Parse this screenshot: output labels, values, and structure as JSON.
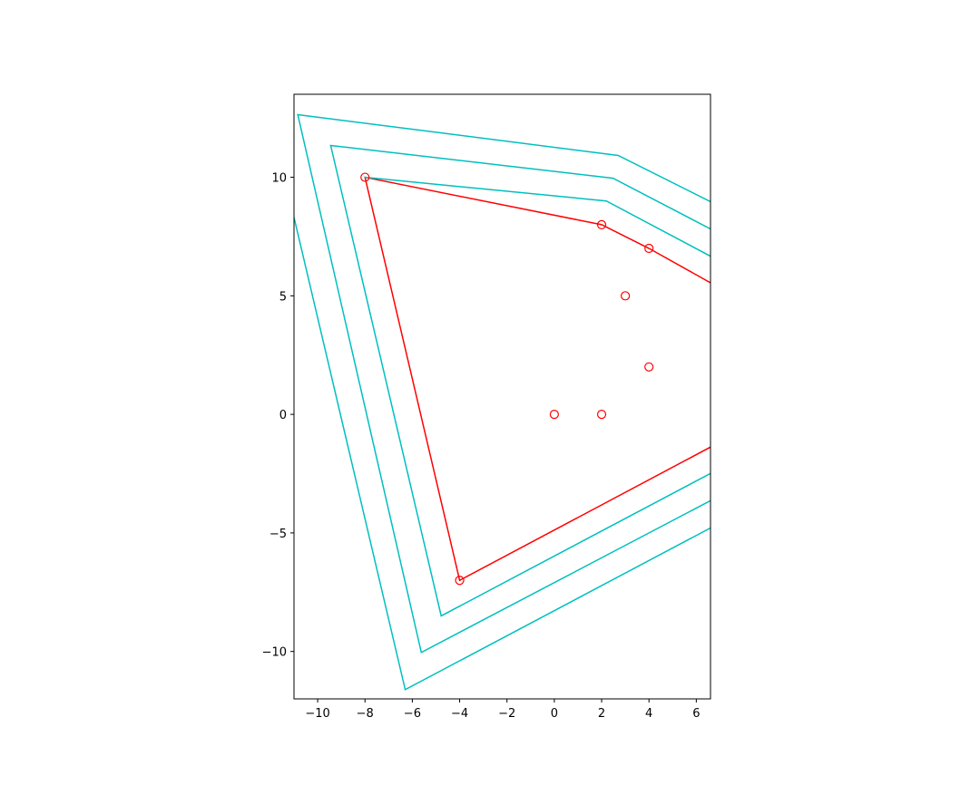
{
  "chart_data": {
    "type": "line",
    "xlim": [
      -11,
      6.6
    ],
    "ylim": [
      -12,
      13.5
    ],
    "xticks": [
      {
        "value": -10,
        "label": "−10"
      },
      {
        "value": -8,
        "label": "−8"
      },
      {
        "value": -6,
        "label": "−6"
      },
      {
        "value": -4,
        "label": "−4"
      },
      {
        "value": -2,
        "label": "−2"
      },
      0,
      2,
      4,
      6
    ],
    "yticks": [
      {
        "value": -10,
        "label": "−10"
      },
      {
        "value": -5,
        "label": "−5"
      },
      0,
      5,
      10
    ],
    "series": [
      {
        "color": "#ff0000",
        "x": [
          6.6,
          4,
          2,
          -8,
          -4,
          6.6
        ],
        "values": [
          5.55,
          7,
          8,
          10,
          -7,
          -1.38
        ]
      },
      {
        "color": "#00bfbf",
        "x": [
          6.6,
          2.2,
          -8.03
        ],
        "values": [
          6.67,
          9.0,
          10.0
        ]
      },
      {
        "color": "#00bfbf",
        "x": [
          6.6,
          2.48,
          -9.45,
          -4.78,
          6.6
        ],
        "values": [
          7.82,
          9.96,
          11.34,
          -8.5,
          -2.49
        ]
      },
      {
        "color": "#00bfbf",
        "x": [
          6.6,
          2.7,
          -10.84,
          -5.62,
          6.6
        ],
        "values": [
          8.97,
          10.92,
          12.64,
          -10.04,
          -3.64
        ]
      },
      {
        "color": "#00bfbf",
        "x": [
          -11,
          -6.3,
          6.6
        ],
        "values": [
          8.31,
          -11.61,
          -4.79
        ]
      },
      {
        "type": "scatter",
        "color": "#ff0000",
        "x": [
          -8,
          2,
          4,
          3,
          4,
          0,
          2,
          -4
        ],
        "values": [
          10,
          8,
          7,
          5,
          2,
          0,
          0,
          -7
        ]
      }
    ]
  }
}
